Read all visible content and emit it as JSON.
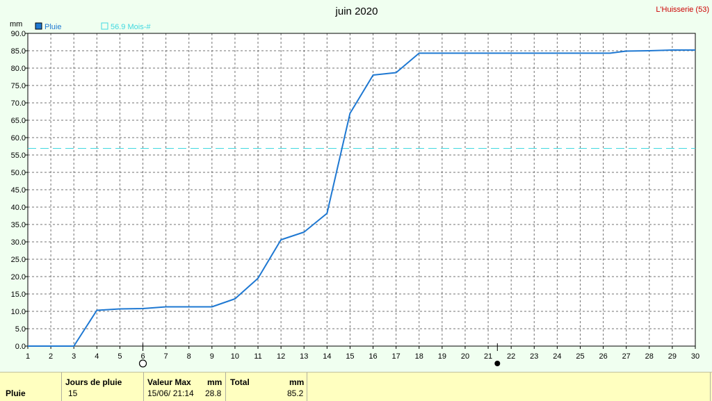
{
  "header": {
    "title": "juin 2020",
    "station": "L'Huisserie (53)"
  },
  "colors": {
    "series": "#1e78d2",
    "reference": "#40d8e0",
    "station": "#cc0000",
    "background": "#f0fff0",
    "stats_background": "#ffffc0"
  },
  "chart_data": {
    "type": "line",
    "title": "juin 2020",
    "ylabel": "mm",
    "xlabel": "",
    "xlim": [
      1,
      30
    ],
    "ylim": [
      0,
      90
    ],
    "grid": true,
    "x_ticks": [
      "1",
      "2",
      "3",
      "4",
      "5",
      "6",
      "7",
      "8",
      "9",
      "10",
      "11",
      "12",
      "13",
      "14",
      "15",
      "16",
      "17",
      "18",
      "19",
      "20",
      "21",
      "22",
      "23",
      "24",
      "25",
      "26",
      "27",
      "28",
      "29",
      "30"
    ],
    "y_ticks": [
      "0.0",
      "5.0",
      "10.0",
      "15.0",
      "20.0",
      "25.0",
      "30.0",
      "35.0",
      "40.0",
      "45.0",
      "50.0",
      "55.0",
      "60.0",
      "65.0",
      "70.0",
      "75.0",
      "80.0",
      "85.0",
      "90.0"
    ],
    "series": [
      {
        "name": "Pluie",
        "x": [
          1,
          2,
          3,
          4,
          5,
          6,
          7,
          8,
          9,
          10,
          11,
          12,
          13,
          14,
          15,
          16,
          17,
          18,
          19,
          20,
          21,
          22,
          23,
          24,
          25,
          26,
          26.3,
          27,
          28,
          29,
          30
        ],
        "y": [
          0,
          0,
          0,
          10.3,
          10.7,
          10.8,
          11.3,
          11.3,
          11.3,
          13.6,
          19.5,
          30.6,
          32.8,
          38.2,
          67.0,
          78.0,
          78.7,
          84.3,
          84.3,
          84.3,
          84.3,
          84.3,
          84.3,
          84.3,
          84.3,
          84.3,
          84.3,
          84.9,
          85.0,
          85.2,
          85.2
        ]
      },
      {
        "name": "56.9 Mois-#",
        "x": [
          1,
          30
        ],
        "y": [
          56.9,
          56.9
        ],
        "style": "dashed"
      }
    ],
    "legend": {
      "position": "top-left",
      "entries": [
        "Pluie",
        "56.9 Mois-#"
      ]
    },
    "moon_phases": [
      {
        "day": 6,
        "phase": "first-quarter"
      },
      {
        "day": 21.4,
        "phase": "new-moon"
      }
    ]
  },
  "stats": {
    "row_label": "Pluie",
    "rain_days_header": "Jours de pluie",
    "rain_days_value": "15",
    "max_header": "Valeur Max",
    "max_unit": "mm",
    "max_date": "15/06/  21:14",
    "max_value": "28.8",
    "total_header": "Total",
    "total_unit": "mm",
    "total_value": "85.2"
  }
}
